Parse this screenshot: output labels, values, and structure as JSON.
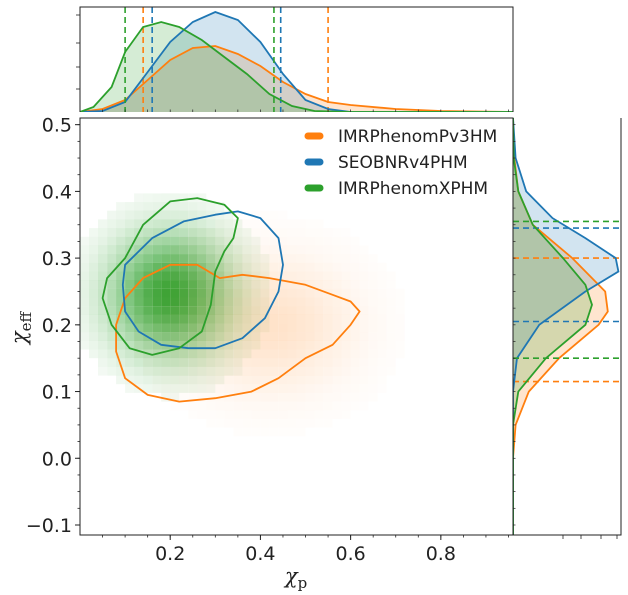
{
  "chart_data": {
    "type": "corner",
    "xlabel": "χ",
    "xlabel_sub": "p",
    "ylabel": "χ",
    "ylabel_sub": "eff",
    "xlim": [
      0.0,
      0.96
    ],
    "ylim": [
      -0.115,
      0.51
    ],
    "x_ticks": [
      0.2,
      0.4,
      0.6,
      0.8
    ],
    "y_ticks": [
      -0.1,
      0.0,
      0.1,
      0.2,
      0.3,
      0.4,
      0.5
    ],
    "x_tick_labels": [
      "0.2",
      "0.4",
      "0.6",
      "0.8"
    ],
    "y_tick_labels": [
      "−0.1",
      "0.0",
      "0.1",
      "0.2",
      "0.3",
      "0.4",
      "0.5"
    ],
    "legend_position": "upper-right",
    "series": [
      {
        "name": "IMRPhenomPv3HM",
        "color": "#ff7f0e",
        "chi_p_interval": [
          0.14,
          0.55
        ],
        "chi_eff_interval": [
          0.115,
          0.3
        ],
        "contour": [
          [
            0.31,
            0.27
          ],
          [
            0.36,
            0.275
          ],
          [
            0.42,
            0.27
          ],
          [
            0.5,
            0.26
          ],
          [
            0.56,
            0.245
          ],
          [
            0.6,
            0.235
          ],
          [
            0.62,
            0.22
          ],
          [
            0.6,
            0.2
          ],
          [
            0.56,
            0.17
          ],
          [
            0.5,
            0.15
          ],
          [
            0.44,
            0.12
          ],
          [
            0.38,
            0.1
          ],
          [
            0.3,
            0.09
          ],
          [
            0.22,
            0.085
          ],
          [
            0.15,
            0.095
          ],
          [
            0.1,
            0.12
          ],
          [
            0.08,
            0.16
          ],
          [
            0.08,
            0.2
          ],
          [
            0.1,
            0.24
          ],
          [
            0.14,
            0.27
          ],
          [
            0.2,
            0.29
          ],
          [
            0.26,
            0.29
          ]
        ],
        "chi_p_density": [
          [
            0.0,
            0.0
          ],
          [
            0.05,
            0.03
          ],
          [
            0.1,
            0.12
          ],
          [
            0.15,
            0.32
          ],
          [
            0.2,
            0.52
          ],
          [
            0.25,
            0.64
          ],
          [
            0.3,
            0.66
          ],
          [
            0.35,
            0.58
          ],
          [
            0.4,
            0.46
          ],
          [
            0.45,
            0.3
          ],
          [
            0.5,
            0.18
          ],
          [
            0.55,
            0.1
          ],
          [
            0.6,
            0.07
          ],
          [
            0.7,
            0.03
          ],
          [
            0.8,
            0.01
          ],
          [
            0.9,
            0.003
          ],
          [
            0.96,
            0.0
          ]
        ],
        "chi_eff_density": [
          [
            -0.115,
            0.0
          ],
          [
            0.0,
            0.0
          ],
          [
            0.05,
            0.02
          ],
          [
            0.1,
            0.12
          ],
          [
            0.15,
            0.35
          ],
          [
            0.2,
            0.65
          ],
          [
            0.22,
            0.72
          ],
          [
            0.25,
            0.7
          ],
          [
            0.3,
            0.45
          ],
          [
            0.35,
            0.15
          ],
          [
            0.4,
            0.04
          ],
          [
            0.45,
            0.01
          ],
          [
            0.51,
            0.0
          ]
        ]
      },
      {
        "name": "SEOBNRv4PHM",
        "color": "#1f77b4",
        "chi_p_interval": [
          0.16,
          0.445
        ],
        "chi_eff_interval": [
          0.205,
          0.345
        ],
        "contour": [
          [
            0.1,
            0.29
          ],
          [
            0.16,
            0.33
          ],
          [
            0.23,
            0.355
          ],
          [
            0.3,
            0.365
          ],
          [
            0.35,
            0.37
          ],
          [
            0.4,
            0.36
          ],
          [
            0.44,
            0.33
          ],
          [
            0.45,
            0.29
          ],
          [
            0.44,
            0.25
          ],
          [
            0.41,
            0.21
          ],
          [
            0.36,
            0.18
          ],
          [
            0.3,
            0.165
          ],
          [
            0.24,
            0.165
          ],
          [
            0.18,
            0.17
          ],
          [
            0.13,
            0.19
          ],
          [
            0.1,
            0.22
          ],
          [
            0.095,
            0.26
          ]
        ],
        "chi_p_density": [
          [
            0.0,
            0.0
          ],
          [
            0.05,
            0.01
          ],
          [
            0.1,
            0.1
          ],
          [
            0.15,
            0.4
          ],
          [
            0.2,
            0.7
          ],
          [
            0.25,
            0.9
          ],
          [
            0.3,
            1.0
          ],
          [
            0.35,
            0.92
          ],
          [
            0.4,
            0.7
          ],
          [
            0.45,
            0.38
          ],
          [
            0.5,
            0.12
          ],
          [
            0.55,
            0.03
          ],
          [
            0.6,
            0.0
          ],
          [
            0.96,
            0.0
          ]
        ],
        "chi_eff_density": [
          [
            -0.115,
            0.0
          ],
          [
            0.1,
            0.0
          ],
          [
            0.15,
            0.03
          ],
          [
            0.2,
            0.2
          ],
          [
            0.25,
            0.55
          ],
          [
            0.28,
            0.8
          ],
          [
            0.3,
            0.78
          ],
          [
            0.33,
            0.55
          ],
          [
            0.36,
            0.3
          ],
          [
            0.4,
            0.1
          ],
          [
            0.45,
            0.02
          ],
          [
            0.51,
            0.0
          ]
        ]
      },
      {
        "name": "IMRPhenomXPHM",
        "color": "#2ca02c",
        "chi_p_interval": [
          0.1,
          0.43
        ],
        "chi_eff_interval": [
          0.15,
          0.355
        ],
        "contour": [
          [
            0.1,
            0.3
          ],
          [
            0.14,
            0.35
          ],
          [
            0.2,
            0.385
          ],
          [
            0.26,
            0.39
          ],
          [
            0.32,
            0.38
          ],
          [
            0.35,
            0.36
          ],
          [
            0.34,
            0.33
          ],
          [
            0.32,
            0.31
          ],
          [
            0.3,
            0.28
          ],
          [
            0.29,
            0.23
          ],
          [
            0.27,
            0.19
          ],
          [
            0.22,
            0.165
          ],
          [
            0.16,
            0.155
          ],
          [
            0.11,
            0.165
          ],
          [
            0.07,
            0.2
          ],
          [
            0.05,
            0.24
          ],
          [
            0.06,
            0.27
          ]
        ],
        "chi_p_density": [
          [
            0.0,
            0.0
          ],
          [
            0.03,
            0.05
          ],
          [
            0.07,
            0.25
          ],
          [
            0.1,
            0.6
          ],
          [
            0.14,
            0.85
          ],
          [
            0.18,
            0.9
          ],
          [
            0.22,
            0.85
          ],
          [
            0.27,
            0.72
          ],
          [
            0.32,
            0.55
          ],
          [
            0.37,
            0.38
          ],
          [
            0.42,
            0.18
          ],
          [
            0.47,
            0.06
          ],
          [
            0.52,
            0.01
          ],
          [
            0.6,
            0.0
          ],
          [
            0.96,
            0.0
          ]
        ],
        "chi_eff_density": [
          [
            -0.115,
            0.0
          ],
          [
            0.05,
            0.0
          ],
          [
            0.1,
            0.04
          ],
          [
            0.15,
            0.25
          ],
          [
            0.2,
            0.55
          ],
          [
            0.23,
            0.6
          ],
          [
            0.26,
            0.55
          ],
          [
            0.3,
            0.38
          ],
          [
            0.35,
            0.15
          ],
          [
            0.4,
            0.04
          ],
          [
            0.45,
            0.005
          ],
          [
            0.51,
            0.0
          ]
        ]
      }
    ],
    "heatmap": [
      {
        "series": "IMRPhenomXPHM",
        "center": [
          0.2,
          0.245
        ],
        "spread": [
          0.095,
          0.065
        ]
      },
      {
        "series": "IMRPhenomPv3HM",
        "center": [
          0.42,
          0.2
        ],
        "spread": [
          0.13,
          0.07
        ]
      }
    ]
  }
}
